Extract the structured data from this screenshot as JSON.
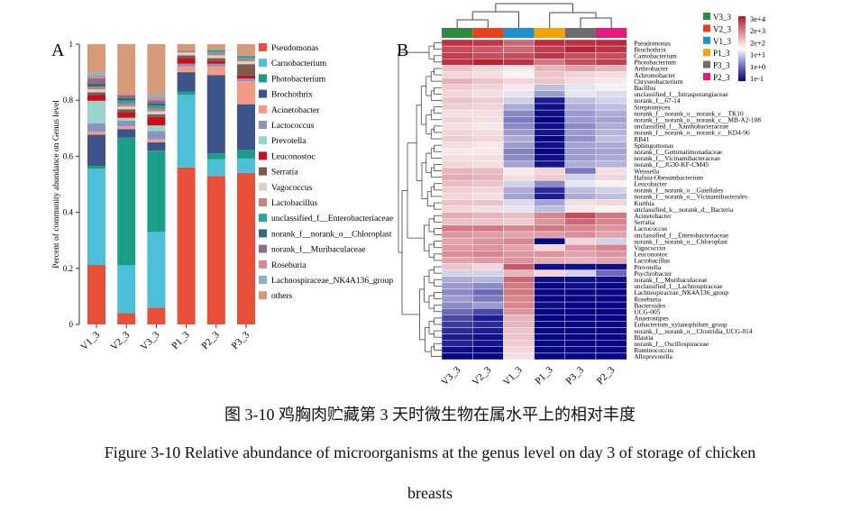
{
  "chart_data": [
    {
      "type": "bar",
      "panel": "A",
      "stacked": true,
      "ylabel": "Percent of community abundance on Genus level",
      "ylim": [
        0,
        1
      ],
      "yticks": [
        "0",
        "0.2",
        "0.4",
        "0.6",
        "0.8",
        "1"
      ],
      "categories": [
        "V1_3",
        "V2_3",
        "V3_3",
        "P1_3",
        "P2_3",
        "P3_3"
      ],
      "legend_position": "right",
      "series": [
        {
          "name": "Pseudomonas",
          "color": "#e8503a",
          "values": [
            0.21,
            0.04,
            0.06,
            0.56,
            0.53,
            0.53
          ]
        },
        {
          "name": "Carnobacterium",
          "color": "#4dbfd8",
          "values": [
            0.34,
            0.17,
            0.27,
            0.26,
            0.06,
            0.05
          ]
        },
        {
          "name": "Photobacterium",
          "color": "#1a9e85",
          "values": [
            0.01,
            0.45,
            0.29,
            0.01,
            0.02,
            0.03
          ]
        },
        {
          "name": "Brochothrix",
          "color": "#3c5489",
          "values": [
            0.11,
            0.03,
            0.03,
            0.07,
            0.28,
            0.16
          ]
        },
        {
          "name": "Acinetobacter",
          "color": "#f59b85",
          "values": [
            0.01,
            0.01,
            0.01,
            0.02,
            0.03,
            0.08
          ]
        },
        {
          "name": "Lactococcus",
          "color": "#8b93bf",
          "values": [
            0.03,
            0.02,
            0.03,
            0.01,
            0.01,
            0.01
          ]
        },
        {
          "name": "Prevotella",
          "color": "#96d5c8",
          "values": [
            0.08,
            0.01,
            0.02,
            0.0,
            0.0,
            0.0
          ]
        },
        {
          "name": "Leuconostoc",
          "color": "#c8101d",
          "values": [
            0.02,
            0.02,
            0.03,
            0.02,
            0.01,
            0.01
          ]
        },
        {
          "name": "Serratia",
          "color": "#7c5b48",
          "values": [
            0.01,
            0.01,
            0.01,
            0.01,
            0.01,
            0.04
          ]
        },
        {
          "name": "Vagococcus",
          "color": "#d3d3d3",
          "values": [
            0.01,
            0.01,
            0.01,
            0.01,
            0.01,
            0.01
          ]
        },
        {
          "name": "Lactobacillus",
          "color": "#c2847a",
          "values": [
            0.01,
            0.01,
            0.01,
            0.01,
            0.01,
            0.01
          ]
        },
        {
          "name": "unclassified_f__Enterobacteriaceae",
          "color": "#2aa79b",
          "values": [
            0.0,
            0.01,
            0.01,
            0.0,
            0.01,
            0.01
          ]
        },
        {
          "name": "norank_f__norank_o__Chloroplast",
          "color": "#2e6b7f",
          "values": [
            0.01,
            0.01,
            0.01,
            0.0,
            0.0,
            0.0
          ]
        },
        {
          "name": "norank_f__Muribaculaceae",
          "color": "#8e6c8a",
          "values": [
            0.02,
            0.01,
            0.01,
            0.0,
            0.0,
            0.0
          ]
        },
        {
          "name": "Roseburia",
          "color": "#cf8a95",
          "values": [
            0.01,
            0.0,
            0.01,
            0.0,
            0.0,
            0.0
          ]
        },
        {
          "name": "Lachnospiraceae_NK4A136_group",
          "color": "#8ab4c3",
          "values": [
            0.01,
            0.0,
            0.01,
            0.0,
            0.0,
            0.0
          ]
        },
        {
          "name": "others",
          "color": "#d79a78",
          "values": [
            0.1,
            0.18,
            0.18,
            0.02,
            0.02,
            0.04
          ]
        }
      ]
    },
    {
      "type": "heatmap",
      "panel": "B",
      "columns": [
        "V3_3",
        "V2_3",
        "V1_3",
        "P1_3",
        "P3_3",
        "P2_3"
      ],
      "column_groups": [
        {
          "name": "V3_3",
          "color": "#2e8b3e"
        },
        {
          "name": "V2_3",
          "color": "#e8401c"
        },
        {
          "name": "V1_3",
          "color": "#1e8ed0"
        },
        {
          "name": "P1_3",
          "color": "#f5a300"
        },
        {
          "name": "P3_3",
          "color": "#6e6e6e"
        },
        {
          "name": "P2_3",
          "color": "#e8197c"
        }
      ],
      "colorbar": {
        "labels": [
          "3e+4",
          "2e+3",
          "2e+2",
          "1e+1",
          "1e+0",
          "1e-1"
        ],
        "scale": "log",
        "colors_high_to_low": [
          "#b2182b",
          "#ffffff",
          "#000080"
        ]
      },
      "color_level_meaning": "-3 (dark blue, low) to +3 (dark red, high), row-scaled",
      "rows": [
        {
          "label": "Pseudomonas",
          "values": [
            2.6,
            2.5,
            1.8,
            2.7,
            2.6,
            2.7
          ]
        },
        {
          "label": "Brochothrix",
          "values": [
            2.2,
            2.0,
            1.8,
            2.4,
            2.8,
            2.6
          ]
        },
        {
          "label": "Carnobacterium",
          "values": [
            2.4,
            2.2,
            2.2,
            2.5,
            2.2,
            2.2
          ]
        },
        {
          "label": "Photobacterium",
          "values": [
            2.6,
            2.8,
            2.6,
            1.6,
            2.2,
            2.4
          ]
        },
        {
          "label": "Arthrobacter",
          "values": [
            0.6,
            0.4,
            0.2,
            0.8,
            1.0,
            0.8
          ]
        },
        {
          "label": "Achromobacter",
          "values": [
            0.4,
            0.3,
            0.1,
            0.6,
            0.4,
            0.3
          ]
        },
        {
          "label": "Chryseobacterium",
          "values": [
            0.8,
            0.6,
            0.4,
            0.6,
            0.3,
            0.2
          ]
        },
        {
          "label": "Bacillus",
          "values": [
            0.5,
            0.4,
            0.2,
            -0.6,
            -0.2,
            -0.1
          ]
        },
        {
          "label": "unclassified_f__Intrasporangiaceae",
          "values": [
            0.4,
            0.3,
            -0.2,
            -1.0,
            -0.2,
            -0.3
          ]
        },
        {
          "label": "norank_f__67-14",
          "values": [
            0.6,
            0.5,
            -0.4,
            -2.6,
            -0.6,
            -0.4
          ]
        },
        {
          "label": "Streptomyces",
          "values": [
            0.5,
            0.4,
            -0.8,
            -2.8,
            -0.8,
            -0.6
          ]
        },
        {
          "label": "norank_f__norank_o__norank_c__TK10",
          "values": [
            0.3,
            0.3,
            -1.2,
            -2.8,
            -1.0,
            -0.8
          ]
        },
        {
          "label": "norank_f__norank_o__norank_c__MB-A2-108",
          "values": [
            0.4,
            0.3,
            -1.4,
            -2.9,
            -1.0,
            -0.9
          ]
        },
        {
          "label": "unclassified_f__Xanthobacteraceae",
          "values": [
            0.3,
            0.2,
            -1.2,
            -2.8,
            -1.2,
            -0.8
          ]
        },
        {
          "label": "norank_f__norank_o__norank_c__KD4-96",
          "values": [
            0.4,
            0.3,
            -1.0,
            -2.7,
            -1.0,
            -0.7
          ]
        },
        {
          "label": "RB41",
          "values": [
            0.5,
            0.4,
            -0.8,
            -2.9,
            -1.1,
            -0.6
          ]
        },
        {
          "label": "Sphingomonas",
          "values": [
            0.3,
            0.2,
            -1.0,
            -2.8,
            -0.9,
            -0.8
          ]
        },
        {
          "label": "norank_f__Gemmatimonadaceae",
          "values": [
            0.2,
            0.2,
            -1.3,
            -2.9,
            -1.0,
            -0.9
          ]
        },
        {
          "label": "norank_f__Vicinamibacteraceae",
          "values": [
            0.3,
            0.3,
            -1.2,
            -2.8,
            -1.0,
            -0.8
          ]
        },
        {
          "label": "norank_f__JG30-KF-CM45",
          "values": [
            0.4,
            0.3,
            -0.9,
            -2.7,
            -0.8,
            -0.7
          ]
        },
        {
          "label": "Weissella",
          "values": [
            0.8,
            0.7,
            0.2,
            0.4,
            -1.4,
            0.3
          ]
        },
        {
          "label": "Hafnia-Obesumbacterium",
          "values": [
            0.9,
            0.8,
            0.3,
            0.5,
            -0.4,
            0.4
          ]
        },
        {
          "label": "Leucobacter",
          "values": [
            0.7,
            0.6,
            -0.4,
            -1.2,
            -0.2,
            0.1
          ]
        },
        {
          "label": "norank_f__norank_o__Gaiellales",
          "values": [
            0.5,
            0.4,
            -0.8,
            -2.4,
            -0.6,
            -0.4
          ]
        },
        {
          "label": "norank_f__norank_o__Vicinamibacterales",
          "values": [
            0.4,
            0.3,
            -0.9,
            -2.6,
            -0.8,
            -0.6
          ]
        },
        {
          "label": "Kurthia",
          "values": [
            0.6,
            0.6,
            -0.3,
            -0.9,
            0.3,
            0.4
          ]
        },
        {
          "label": "unclassified_k__norank_d__Bacteria",
          "values": [
            0.4,
            0.3,
            -0.2,
            -0.6,
            0.2,
            0.1
          ]
        },
        {
          "label": "Acinetobacter",
          "values": [
            0.9,
            0.8,
            0.7,
            1.4,
            2.2,
            1.6
          ]
        },
        {
          "label": "Serratia",
          "values": [
            0.6,
            0.6,
            0.5,
            1.2,
            1.8,
            1.4
          ]
        },
        {
          "label": "Lactococcus",
          "values": [
            1.6,
            1.6,
            1.4,
            1.6,
            1.4,
            1.2
          ]
        },
        {
          "label": "unclassified_f__Enterobacteriaceae",
          "values": [
            1.2,
            1.1,
            1.0,
            1.1,
            1.3,
            1.0
          ]
        },
        {
          "label": "norank_f__norank_o__Chloroplast",
          "values": [
            1.0,
            1.2,
            1.4,
            -2.9,
            0.4,
            -0.4
          ]
        },
        {
          "label": "Vagococcus",
          "values": [
            1.1,
            1.2,
            1.0,
            0.4,
            1.2,
            1.4
          ]
        },
        {
          "label": "Leuconostoc",
          "values": [
            1.3,
            1.4,
            1.2,
            1.2,
            1.0,
            1.2
          ]
        },
        {
          "label": "Lactobacillus",
          "values": [
            1.0,
            1.1,
            1.2,
            0.9,
            0.8,
            1.0
          ]
        },
        {
          "label": "Prevotella",
          "values": [
            0.6,
            0.4,
            2.0,
            -2.8,
            -2.8,
            -2.8
          ]
        },
        {
          "label": "Psychrobacter",
          "values": [
            -0.4,
            -0.4,
            0.8,
            0.4,
            -0.4,
            -1.6
          ]
        },
        {
          "label": "norank_f__Muribaculaceae",
          "values": [
            -0.8,
            -0.7,
            1.8,
            -2.8,
            -2.8,
            -2.8
          ]
        },
        {
          "label": "unclassified_f__Lachnospiraceae",
          "values": [
            -1.0,
            -1.2,
            1.6,
            -2.9,
            -2.8,
            -2.9
          ]
        },
        {
          "label": "Lachnospiraceae_NK4A136_group",
          "values": [
            -1.2,
            -1.6,
            1.6,
            -2.9,
            -2.9,
            -2.9
          ]
        },
        {
          "label": "Roseburia",
          "values": [
            -1.0,
            -1.4,
            1.4,
            -2.9,
            -2.9,
            -2.9
          ]
        },
        {
          "label": "Bacteroides",
          "values": [
            -1.2,
            -1.0,
            1.4,
            -2.8,
            -2.9,
            -2.9
          ]
        },
        {
          "label": "UCG-005",
          "values": [
            -1.6,
            -2.0,
            1.2,
            -2.9,
            -2.9,
            -2.9
          ]
        },
        {
          "label": "Anaerostipes",
          "values": [
            -2.0,
            -2.6,
            0.8,
            -2.9,
            -2.9,
            -2.9
          ]
        },
        {
          "label": "Eubacterium_xylanophilum_group",
          "values": [
            -2.2,
            -2.4,
            0.8,
            -2.9,
            -2.9,
            -2.9
          ]
        },
        {
          "label": "norank_f__norank_o__Clostridia_UCG-014",
          "values": [
            -2.4,
            -2.6,
            0.6,
            -2.9,
            -2.9,
            -2.9
          ]
        },
        {
          "label": "Blautia",
          "values": [
            -2.6,
            -2.8,
            0.6,
            -2.9,
            -2.9,
            -2.9
          ]
        },
        {
          "label": "norank_f__Oscillospiraceae",
          "values": [
            -2.5,
            -2.7,
            0.5,
            -2.9,
            -2.9,
            -2.9
          ]
        },
        {
          "label": "Ruminococcus",
          "values": [
            -2.8,
            -2.9,
            0.4,
            -2.9,
            -2.9,
            -2.9
          ]
        },
        {
          "label": "Alloprevotella",
          "values": [
            -2.9,
            -2.9,
            0.3,
            -2.9,
            -2.9,
            -2.9
          ]
        }
      ]
    }
  ],
  "panel_labels": {
    "a": "A",
    "b": "B"
  },
  "caption": {
    "zh": "图 3-10  鸡胸肉贮藏第 3 天时微生物在属水平上的相对丰度",
    "en_line1": "Figure 3-10 Relative abundance of microorganisms at the genus level on day 3 of storage of chicken",
    "en_line2": "breasts"
  }
}
